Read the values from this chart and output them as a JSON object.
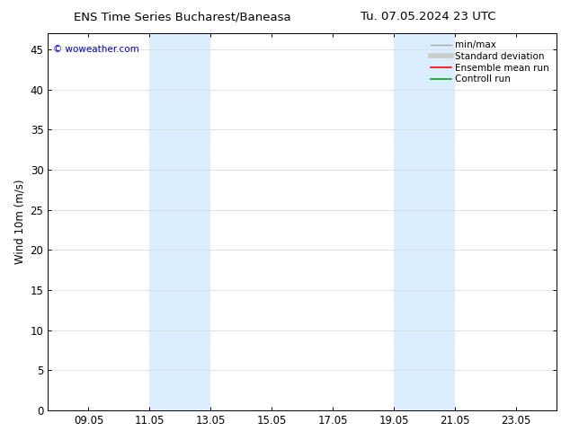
{
  "title_left": "ENS Time Series Bucharest/Baneasa",
  "title_right": "Tu. 07.05.2024 23 UTC",
  "ylabel": "Wind 10m (m/s)",
  "watermark": "© woweather.com",
  "watermark_color": "#0000cc",
  "background_color": "#ffffff",
  "plot_bg_color": "#ffffff",
  "ylim": [
    0,
    47
  ],
  "yticks": [
    0,
    5,
    10,
    15,
    20,
    25,
    30,
    35,
    40,
    45
  ],
  "xlim": [
    7.67,
    24.33
  ],
  "xtick_labels": [
    "09.05",
    "11.05",
    "13.05",
    "15.05",
    "17.05",
    "19.05",
    "21.05",
    "23.05"
  ],
  "xtick_positions": [
    9,
    11,
    13,
    15,
    17,
    19,
    21,
    23
  ],
  "shaded_regions": [
    {
      "xmin": 11.0,
      "xmax": 13.0,
      "color": "#daeeff"
    },
    {
      "xmin": 19.0,
      "xmax": 21.0,
      "color": "#daeeff"
    }
  ],
  "legend_items": [
    {
      "label": "min/max",
      "color": "#aaaaaa",
      "lw": 1.0
    },
    {
      "label": "Standard deviation",
      "color": "#cccccc",
      "lw": 4.0
    },
    {
      "label": "Ensemble mean run",
      "color": "#ff0000",
      "lw": 1.2
    },
    {
      "label": "Controll run",
      "color": "#00aa00",
      "lw": 1.2
    }
  ],
  "grid_color": "#dddddd",
  "spine_color": "#000000",
  "font_size": 8.5,
  "title_font_size": 9.5
}
